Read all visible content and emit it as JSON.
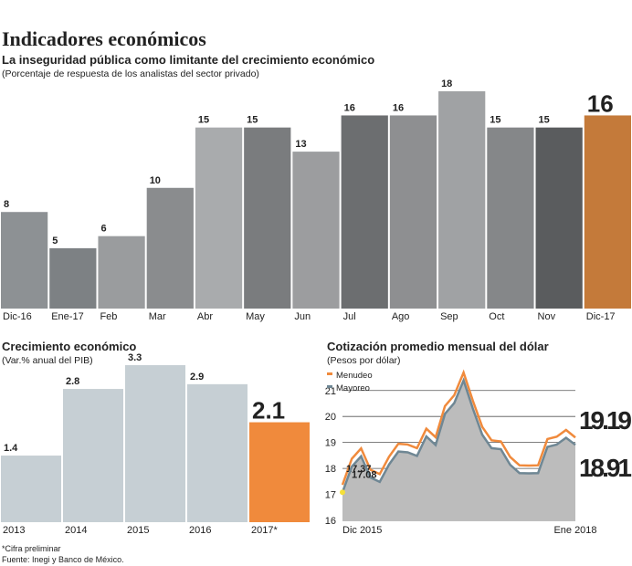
{
  "title": "Indicadores económicos",
  "notes": [
    "*Cifra preliminar",
    "Fuente: Inegi y Banco de México."
  ],
  "chart_data": [
    {
      "type": "bar",
      "title": "La inseguridad pública como limitante del crecimiento económico",
      "subtitle": "(Porcentaje de respuesta de los analistas del sector privado)",
      "categories": [
        "Dic-16",
        "Ene-17",
        "Feb",
        "Mar",
        "Abr",
        "May",
        "Jun",
        "Jul",
        "Ago",
        "Sep",
        "Oct",
        "Nov",
        "Dic-17"
      ],
      "values": [
        8,
        5,
        6,
        10,
        15,
        15,
        13,
        16,
        16,
        18,
        15,
        15,
        16
      ],
      "colors": [
        "#8d9194",
        "#7d8184",
        "#9a9c9e",
        "#8a8c8e",
        "#a9abad",
        "#7a7c7e",
        "#9c9d9f",
        "#6c6e70",
        "#8e8f91",
        "#a0a2a4",
        "#858789",
        "#5a5c5e",
        "#c47a3a"
      ]
    },
    {
      "type": "bar",
      "title": "Crecimiento económico",
      "subtitle": "(Var.% anual del PIB)",
      "categories": [
        "2013",
        "2014",
        "2015",
        "2016",
        "2017*"
      ],
      "values": [
        1.4,
        2.8,
        3.3,
        2.9,
        2.1
      ],
      "colors": [
        "#c6cfd4",
        "#c6cfd4",
        "#c6cfd4",
        "#c6cfd4",
        "#f08a3c"
      ]
    },
    {
      "type": "line",
      "title": "Cotización promedio mensual del dólar",
      "subtitle": "(Pesos por dólar)",
      "categories": [
        "Dic 2015",
        null,
        null,
        null,
        null,
        null,
        null,
        null,
        null,
        null,
        null,
        null,
        null,
        null,
        null,
        null,
        null,
        null,
        null,
        null,
        null,
        null,
        null,
        null,
        null,
        "Ene 2018"
      ],
      "series": [
        {
          "name": "Menudeo",
          "color": "#f08a3c",
          "values": [
            17.37,
            18.37,
            18.77,
            17.95,
            17.78,
            18.45,
            18.95,
            18.92,
            18.78,
            19.53,
            19.2,
            20.4,
            20.82,
            21.69,
            20.6,
            19.6,
            19.08,
            19.04,
            18.44,
            18.12,
            18.11,
            18.12,
            19.13,
            19.22,
            19.48,
            19.19
          ]
        },
        {
          "name": "Mayoreo",
          "color": "#6f8794",
          "values": [
            17.08,
            18.07,
            18.47,
            17.65,
            17.48,
            18.15,
            18.65,
            18.62,
            18.48,
            19.23,
            18.9,
            20.1,
            20.52,
            21.39,
            20.3,
            19.3,
            18.78,
            18.74,
            18.14,
            17.82,
            17.81,
            17.82,
            18.83,
            18.92,
            19.18,
            18.91
          ]
        }
      ],
      "ylim": [
        16,
        21.8
      ],
      "yticks": [
        16,
        17,
        18,
        19,
        20,
        21
      ],
      "grid": true,
      "legend": "top-left"
    }
  ]
}
